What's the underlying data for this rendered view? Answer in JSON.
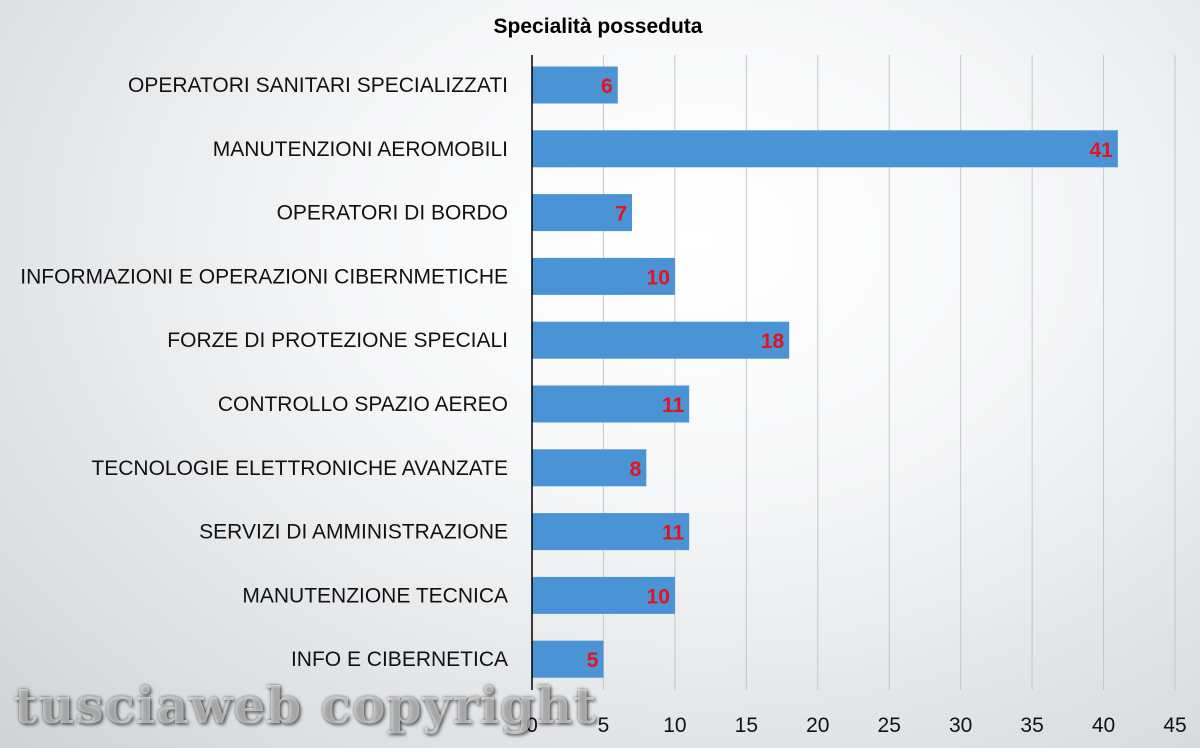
{
  "chart_data": {
    "type": "bar",
    "orientation": "horizontal",
    "title": "Specialità posseduta",
    "categories": [
      "OPERATORI SANITARI SPECIALIZZATI",
      "MANUTENZIONI AEROMOBILI",
      "OPERATORI DI BORDO",
      "INFORMAZIONI E OPERAZIONI CIBERNMETICHE",
      "FORZE DI PROTEZIONE SPECIALI",
      "CONTROLLO SPAZIO AEREO",
      "TECNOLOGIE ELETTRONICHE AVANZATE",
      "SERVIZI DI AMMINISTRAZIONE",
      "MANUTENZIONE TECNICA",
      "INFO E CIBERNETICA"
    ],
    "values": [
      6,
      41,
      7,
      10,
      18,
      11,
      8,
      11,
      10,
      5
    ],
    "xlim": [
      0,
      45
    ],
    "xticks": [
      0,
      5,
      10,
      15,
      20,
      25,
      30,
      35,
      40,
      45
    ],
    "xlabel": "",
    "ylabel": "",
    "grid": "vertical",
    "legend": "none",
    "data_labels": true,
    "colors": {
      "bar": "#4a93d4",
      "data_label": "#e3141b",
      "gridline": "#c4c7ca",
      "axis": "#000000"
    }
  },
  "watermark": "tusciaweb copyright"
}
